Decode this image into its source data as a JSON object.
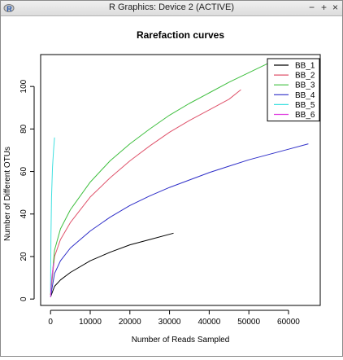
{
  "window": {
    "title": "R Graphics: Device 2 (ACTIVE)",
    "minimize_symbol": "−",
    "maximize_symbol": "+",
    "close_symbol": "×"
  },
  "chart_data": {
    "type": "line",
    "title": "Rarefaction curves",
    "xlabel": "Number of Reads Sampled",
    "ylabel": "Number of Different OTUs",
    "xlim": [
      -2500,
      68000
    ],
    "ylim": [
      -3,
      115
    ],
    "x_ticks": [
      0,
      10000,
      20000,
      30000,
      40000,
      50000,
      60000
    ],
    "x_tick_labels": [
      "0",
      "10000",
      "20000",
      "30000",
      "40000",
      "50000",
      "60000"
    ],
    "y_ticks": [
      0,
      20,
      40,
      60,
      80,
      100
    ],
    "y_tick_labels": [
      "0",
      "20",
      "40",
      "60",
      "80",
      "100"
    ],
    "grid": false,
    "legend_position": "top-right",
    "series": [
      {
        "name": "BB_1",
        "color": "#000000",
        "x": [
          0,
          1000,
          2500,
          5000,
          10000,
          15000,
          20000,
          25000,
          31000
        ],
        "y": [
          1,
          6,
          9,
          12.5,
          18,
          22,
          25.5,
          28,
          31
        ]
      },
      {
        "name": "BB_2",
        "color": "#df536b",
        "x": [
          0,
          1000,
          2500,
          5000,
          10000,
          15000,
          20000,
          25000,
          30000,
          35000,
          40000,
          45000,
          48000
        ],
        "y": [
          2,
          20,
          28,
          36,
          48,
          57,
          65,
          72,
          78.5,
          84,
          89,
          94,
          98.5
        ]
      },
      {
        "name": "BB_3",
        "color": "#3fbf3f",
        "x": [
          0,
          1000,
          2500,
          5000,
          10000,
          15000,
          20000,
          25000,
          30000,
          35000,
          40000,
          45000,
          50000,
          55000
        ],
        "y": [
          2,
          23,
          33,
          42,
          55,
          65,
          73,
          80,
          86.5,
          92,
          97,
          102,
          106.5,
          111
        ]
      },
      {
        "name": "BB_4",
        "color": "#2e2ec8",
        "x": [
          0,
          1000,
          2500,
          5000,
          10000,
          15000,
          20000,
          25000,
          30000,
          35000,
          40000,
          45000,
          50000,
          55000,
          60000,
          65000
        ],
        "y": [
          1,
          12,
          18,
          24,
          32,
          38.5,
          44,
          48.5,
          52.5,
          56,
          59.5,
          62.5,
          65.5,
          68,
          70.5,
          73
        ]
      },
      {
        "name": "BB_5",
        "color": "#40e0e0",
        "x": [
          0,
          100,
          250,
          500,
          750,
          1000
        ],
        "y": [
          3,
          30,
          48,
          62,
          70,
          76
        ]
      },
      {
        "name": "BB_6",
        "color": "#e040e0",
        "x": [
          0,
          150,
          300,
          500,
          700,
          850
        ],
        "y": [
          1,
          6,
          10,
          13,
          15.5,
          17
        ]
      }
    ]
  }
}
